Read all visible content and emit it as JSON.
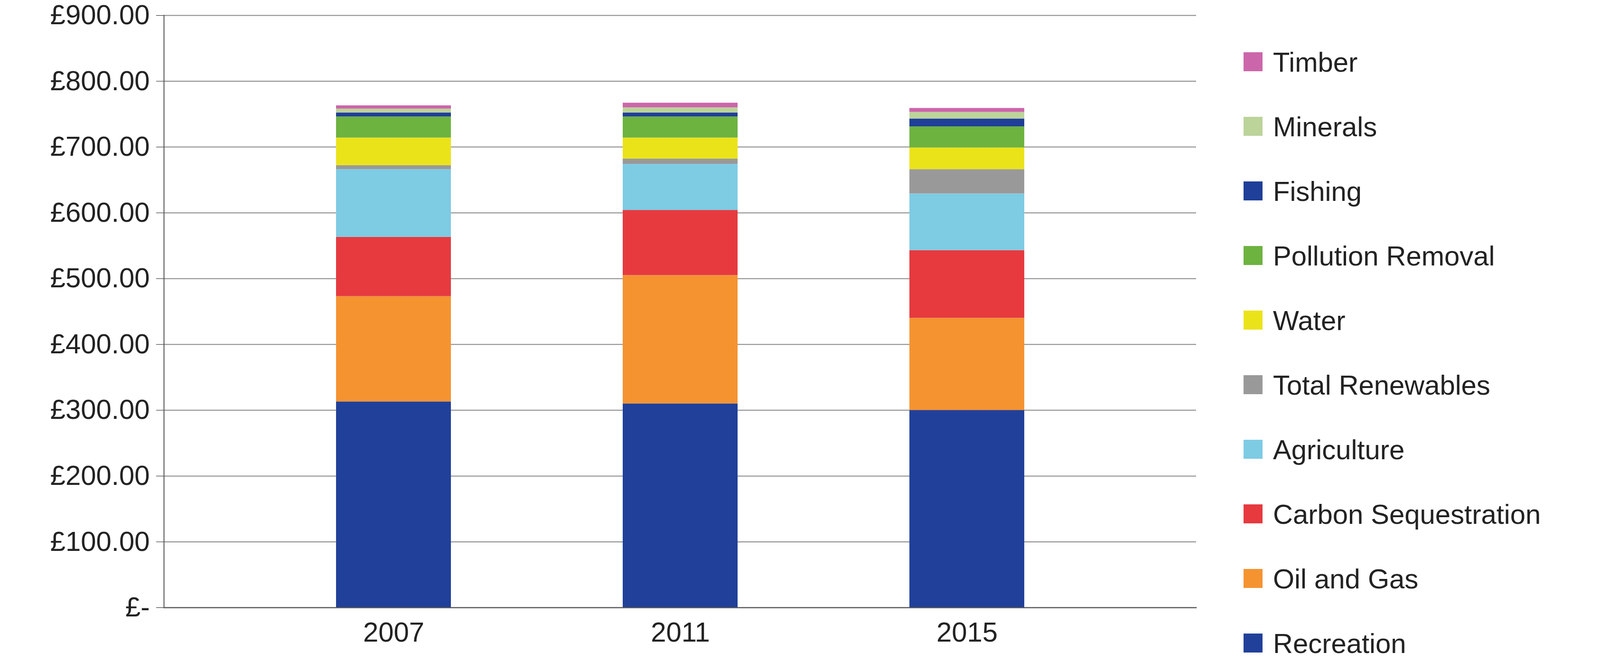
{
  "chart_data": {
    "type": "bar",
    "stacked": true,
    "legend": "right",
    "grid": true,
    "categories": [
      "2007",
      "2011",
      "2015"
    ],
    "ylim": [
      0,
      900
    ],
    "yticks": [
      {
        "value": 0,
        "label": "£-"
      },
      {
        "value": 100,
        "label": "£100.00"
      },
      {
        "value": 200,
        "label": "£200.00"
      },
      {
        "value": 300,
        "label": "£300.00"
      },
      {
        "value": 400,
        "label": "£400.00"
      },
      {
        "value": 500,
        "label": "£500.00"
      },
      {
        "value": 600,
        "label": "£600.00"
      },
      {
        "value": 700,
        "label": "£700.00"
      },
      {
        "value": 800,
        "label": "£800.00"
      },
      {
        "value": 900,
        "label": "£900.00"
      }
    ],
    "series": [
      {
        "name": "Recreation",
        "color": "#21409a",
        "values": [
          313,
          310,
          300
        ]
      },
      {
        "name": "Oil and Gas",
        "color": "#f59331",
        "values": [
          160,
          195,
          140
        ]
      },
      {
        "name": "Carbon Sequestration",
        "color": "#e63a3f",
        "values": [
          90,
          99,
          103
        ]
      },
      {
        "name": "Agriculture",
        "color": "#7ecbe4",
        "values": [
          103,
          70,
          86
        ]
      },
      {
        "name": "Total Renewables",
        "color": "#999999",
        "values": [
          6,
          8,
          37
        ]
      },
      {
        "name": "Water",
        "color": "#ebe31a",
        "values": [
          42,
          32,
          33
        ]
      },
      {
        "name": "Pollution Removal",
        "color": "#6db33f",
        "values": [
          32,
          32,
          32
        ]
      },
      {
        "name": "Fishing",
        "color": "#1f3f98",
        "values": [
          6,
          6,
          12
        ]
      },
      {
        "name": "Minerals",
        "color": "#bcd39a",
        "values": [
          6,
          8,
          10
        ]
      },
      {
        "name": "Timber",
        "color": "#cc66aa",
        "values": [
          5,
          7,
          6
        ]
      }
    ]
  }
}
